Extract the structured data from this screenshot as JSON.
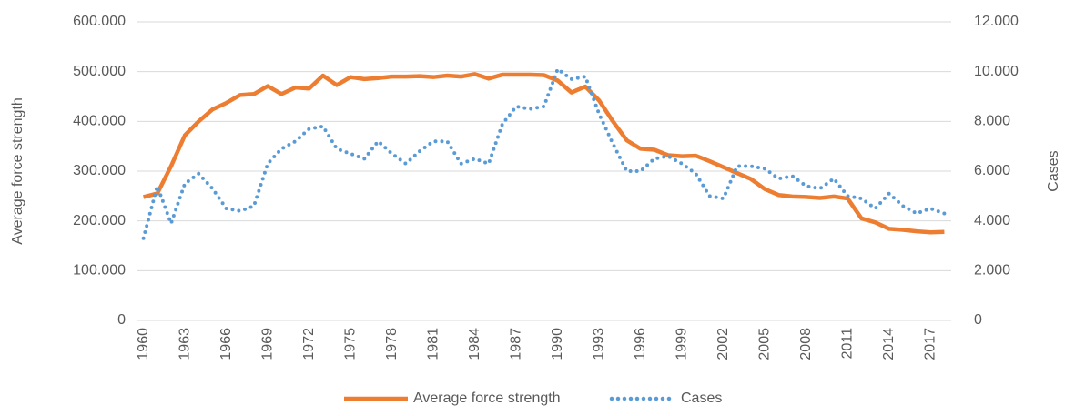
{
  "chart_data": {
    "type": "line",
    "categories": [
      "1960",
      null,
      null,
      "1963",
      null,
      null,
      "1966",
      null,
      null,
      "1969",
      null,
      null,
      "1972",
      null,
      null,
      "1975",
      null,
      null,
      "1978",
      null,
      null,
      "1981",
      null,
      null,
      "1984",
      null,
      null,
      "1987",
      null,
      null,
      "1990",
      null,
      null,
      "1993",
      null,
      null,
      "1996",
      null,
      null,
      "1999",
      null,
      null,
      "2002",
      null,
      null,
      "2005",
      null,
      null,
      "2008",
      null,
      null,
      "2011",
      null,
      null,
      "2014",
      null,
      null,
      "2017",
      null
    ],
    "series": [
      {
        "name": "Average force strength",
        "color": "#ed7d31",
        "axis": "y",
        "values": [
          248000,
          255000,
          310000,
          372000,
          400000,
          424000,
          437000,
          453000,
          455000,
          471000,
          455000,
          468000,
          466000,
          492000,
          473000,
          489000,
          485000,
          487000,
          490000,
          490000,
          491000,
          489000,
          492000,
          490000,
          495000,
          486000,
          494000,
          494000,
          494000,
          493000,
          482000,
          458000,
          470000,
          442000,
          400000,
          362000,
          345000,
          343000,
          332000,
          330000,
          331000,
          320000,
          308000,
          296000,
          284000,
          264000,
          252000,
          249000,
          248000,
          246000,
          249000,
          245000,
          205000,
          197000,
          184000,
          182000,
          179000,
          177000,
          178000
        ]
      },
      {
        "name": "Cases",
        "color": "#5b9bd5",
        "axis": "y2",
        "values": [
          3300,
          5400,
          3900,
          5500,
          5900,
          5300,
          4500,
          4400,
          4600,
          6300,
          6900,
          7200,
          7700,
          7800,
          6900,
          6700,
          6500,
          7200,
          6700,
          6300,
          6800,
          7200,
          7200,
          6300,
          6500,
          6300,
          7900,
          8600,
          8500,
          8600,
          10100,
          9700,
          9800,
          8300,
          7100,
          6000,
          6000,
          6500,
          6600,
          6300,
          5900,
          5000,
          4900,
          6200,
          6200,
          6100,
          5700,
          5800,
          5400,
          5300,
          5700,
          5000,
          4900,
          4500,
          5100,
          4600,
          4300,
          4500,
          4300
        ]
      }
    ],
    "ylabel": "Average force strength",
    "y2label": "Cases",
    "ylim": [
      0,
      600000
    ],
    "yticks": [
      0,
      {
        "value": 100000,
        "label": "100.000"
      },
      {
        "value": 200000,
        "label": "200.000"
      },
      {
        "value": 300000,
        "label": "300.000"
      },
      {
        "value": 400000,
        "label": "400.000"
      },
      {
        "value": 500000,
        "label": "500.000"
      },
      {
        "value": 600000,
        "label": "600.000"
      }
    ],
    "y2lim": [
      0,
      12000
    ],
    "y2ticks": [
      0,
      {
        "value": 2000,
        "label": "2.000"
      },
      {
        "value": 4000,
        "label": "4.000"
      },
      {
        "value": 6000,
        "label": "6.000"
      },
      {
        "value": 8000,
        "label": "8.000"
      },
      {
        "value": 10000,
        "label": "10.000"
      },
      {
        "value": 12000,
        "label": "12.000"
      }
    ],
    "grid": true,
    "legend": "bottom"
  }
}
